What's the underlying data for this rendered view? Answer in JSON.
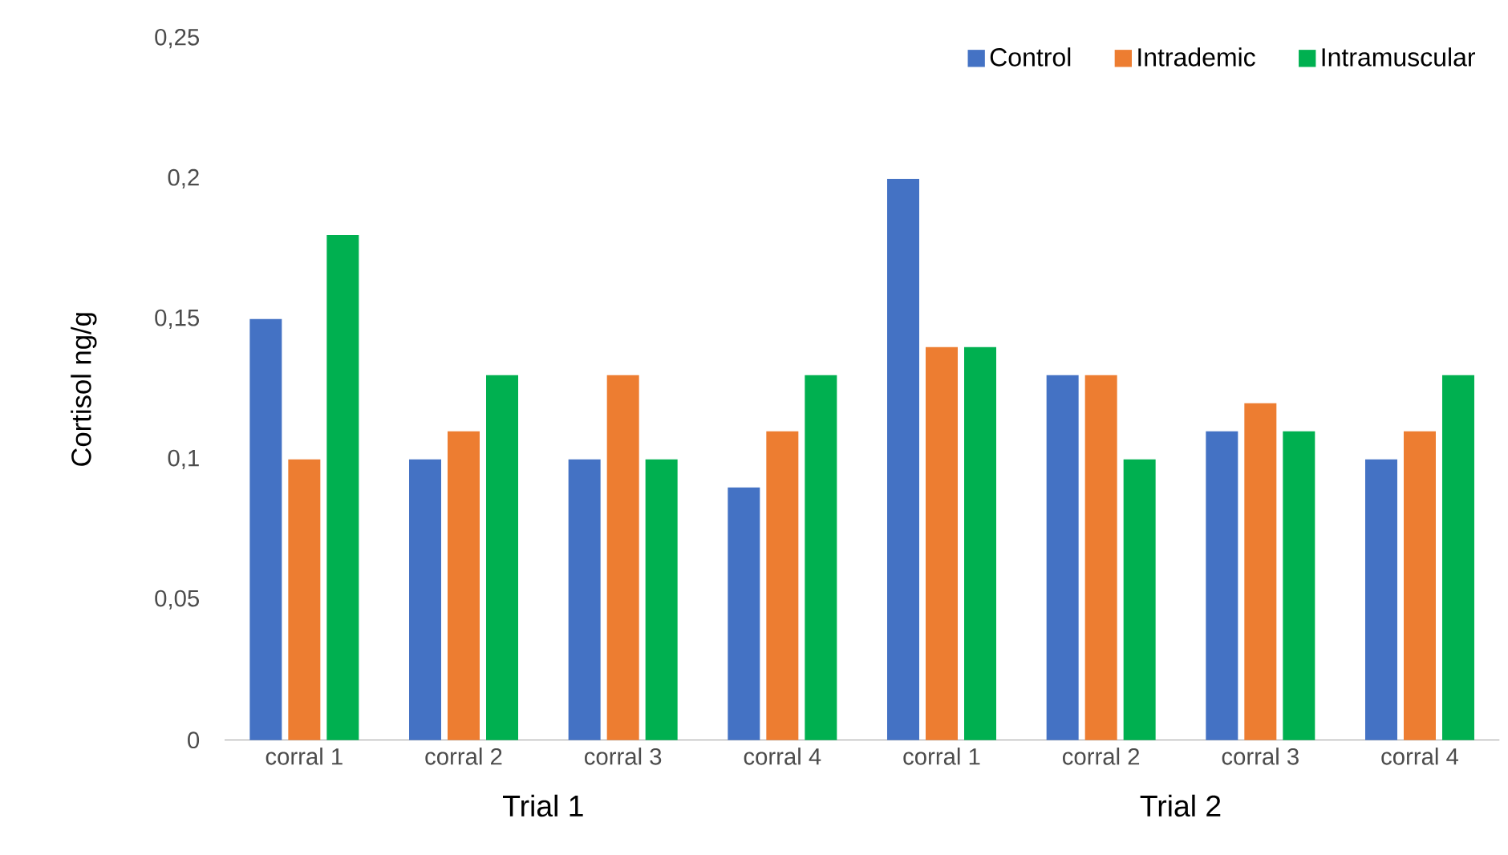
{
  "chart_data": {
    "type": "bar",
    "ylabel": "Cortisol ng/g",
    "categories": [
      "corral 1",
      "corral 2",
      "corral 3",
      "corral 4",
      "corral 1",
      "corral 2",
      "corral 3",
      "corral 4"
    ],
    "series": [
      {
        "name": "Control",
        "color": "#4472c4",
        "values": [
          0.15,
          0.1,
          0.1,
          0.09,
          0.2,
          0.13,
          0.11,
          0.1
        ]
      },
      {
        "name": "Intrademic",
        "color": "#ed7d31",
        "values": [
          0.1,
          0.11,
          0.13,
          0.11,
          0.14,
          0.13,
          0.12,
          0.11
        ]
      },
      {
        "name": "Intramuscular",
        "color": "#00b050",
        "values": [
          0.18,
          0.13,
          0.1,
          0.13,
          0.14,
          0.1,
          0.11,
          0.13
        ]
      }
    ],
    "ylim": [
      0,
      0.25
    ],
    "yticks": [
      0,
      {
        "value": 0.05,
        "label": "0,05"
      },
      {
        "value": 0.1,
        "label": "0,1"
      },
      {
        "value": 0.15,
        "label": "0,15"
      },
      {
        "value": 0.2,
        "label": "0,2"
      },
      {
        "value": 0.25,
        "label": "0,25"
      }
    ],
    "annotations": [
      "Trial 1",
      "Trial 2"
    ],
    "grid": false,
    "legend": "top right"
  }
}
